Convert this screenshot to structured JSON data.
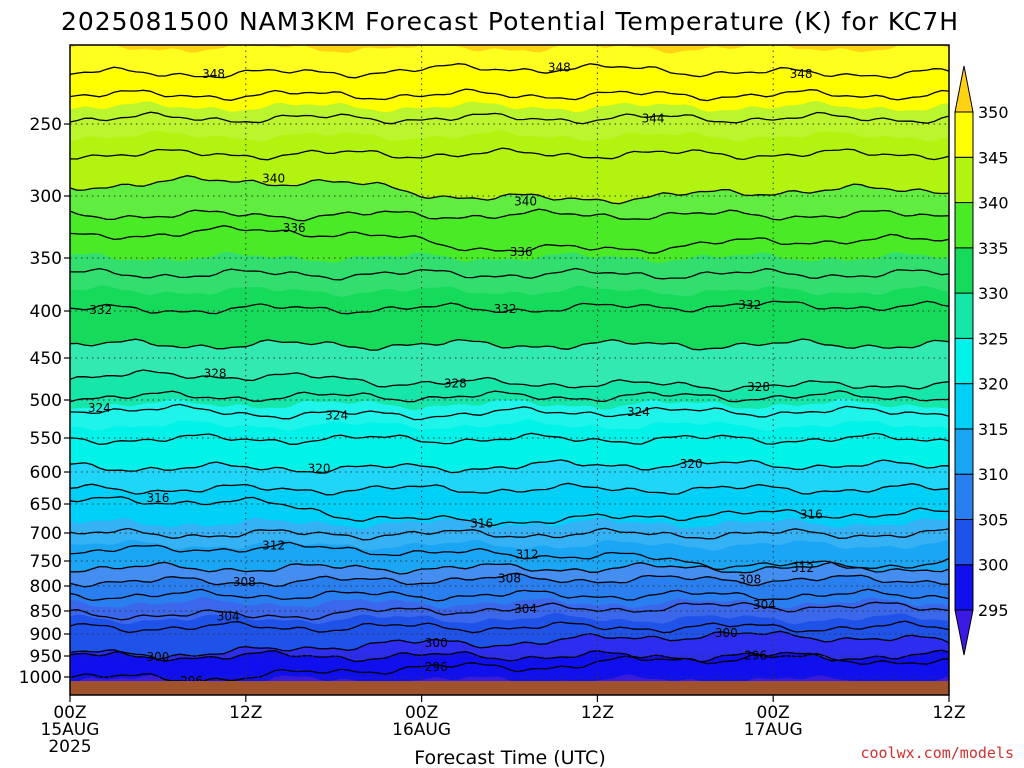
{
  "chart_data": {
    "type": "heatmap",
    "title": "2025081500 NAM3KM Forecast Potential Temperature (K) for KC7H",
    "xlabel": "Forecast Time (UTC)",
    "ylabel": "",
    "credit": "coolwx.com/models",
    "x_ticks": [
      {
        "hour": 0,
        "l1": "00Z",
        "l2": "15AUG",
        "l3": "2025"
      },
      {
        "hour": 12,
        "l1": "12Z",
        "l2": "",
        "l3": ""
      },
      {
        "hour": 24,
        "l1": "00Z",
        "l2": "16AUG",
        "l3": ""
      },
      {
        "hour": 36,
        "l1": "12Z",
        "l2": "",
        "l3": ""
      },
      {
        "hour": 48,
        "l1": "00Z",
        "l2": "17AUG",
        "l3": ""
      },
      {
        "hour": 60,
        "l1": "12Z",
        "l2": "",
        "l3": ""
      }
    ],
    "xlim_hours": [
      0,
      60
    ],
    "y_ticks": [
      250,
      300,
      350,
      400,
      450,
      500,
      550,
      600,
      650,
      700,
      750,
      800,
      850,
      900,
      950,
      1000
    ],
    "ylim_hPa": [
      200,
      1030
    ],
    "y_scale": "log-pressure",
    "contour_interval": 2,
    "contour_levels": [
      296,
      298,
      300,
      302,
      304,
      306,
      308,
      310,
      312,
      314,
      316,
      318,
      320,
      322,
      324,
      326,
      328,
      330,
      332,
      334,
      336,
      338,
      340,
      342,
      344,
      346,
      348
    ],
    "contour_labels": [
      {
        "value": "348",
        "hour": 9.8,
        "p": 217
      },
      {
        "value": "348",
        "hour": 33.4,
        "p": 213
      },
      {
        "value": "348",
        "hour": 49.9,
        "p": 217
      },
      {
        "value": "344",
        "hour": 39.8,
        "p": 246
      },
      {
        "value": "340",
        "hour": 13.9,
        "p": 287
      },
      {
        "value": "340",
        "hour": 31.1,
        "p": 304
      },
      {
        "value": "336",
        "hour": 15.3,
        "p": 325
      },
      {
        "value": "336",
        "hour": 30.8,
        "p": 345
      },
      {
        "value": "332",
        "hour": 2.1,
        "p": 399
      },
      {
        "value": "332",
        "hour": 29.7,
        "p": 398
      },
      {
        "value": "332",
        "hour": 46.4,
        "p": 394
      },
      {
        "value": "328",
        "hour": 9.9,
        "p": 468
      },
      {
        "value": "328",
        "hour": 26.3,
        "p": 480
      },
      {
        "value": "328",
        "hour": 47.0,
        "p": 484
      },
      {
        "value": "324",
        "hour": 2.0,
        "p": 510
      },
      {
        "value": "324",
        "hour": 18.2,
        "p": 520
      },
      {
        "value": "324",
        "hour": 38.8,
        "p": 515
      },
      {
        "value": "320",
        "hour": 17.0,
        "p": 595
      },
      {
        "value": "320",
        "hour": 42.4,
        "p": 588
      },
      {
        "value": "316",
        "hour": 6.0,
        "p": 640
      },
      {
        "value": "316",
        "hour": 28.1,
        "p": 683
      },
      {
        "value": "316",
        "hour": 50.6,
        "p": 668
      },
      {
        "value": "312",
        "hour": 13.9,
        "p": 722
      },
      {
        "value": "312",
        "hour": 31.2,
        "p": 738
      },
      {
        "value": "312",
        "hour": 50.0,
        "p": 764
      },
      {
        "value": "308",
        "hour": 11.9,
        "p": 792
      },
      {
        "value": "308",
        "hour": 30.0,
        "p": 785
      },
      {
        "value": "308",
        "hour": 46.4,
        "p": 787
      },
      {
        "value": "304",
        "hour": 10.8,
        "p": 862
      },
      {
        "value": "304",
        "hour": 31.1,
        "p": 846
      },
      {
        "value": "304",
        "hour": 47.4,
        "p": 838
      },
      {
        "value": "300",
        "hour": 6.0,
        "p": 952
      },
      {
        "value": "300",
        "hour": 25.0,
        "p": 920
      },
      {
        "value": "300",
        "hour": 44.8,
        "p": 898
      },
      {
        "value": "296",
        "hour": 8.3,
        "p": 1007
      },
      {
        "value": "296",
        "hour": 25.0,
        "p": 976
      },
      {
        "value": "296",
        "hour": 46.8,
        "p": 949
      }
    ],
    "colorbar": {
      "ticks": [
        295,
        300,
        305,
        310,
        315,
        320,
        325,
        330,
        335,
        340,
        345,
        350
      ],
      "colors": [
        {
          "range": "<295",
          "color": "#3b1ae6"
        },
        {
          "range": "295-300",
          "color": "#1010ee"
        },
        {
          "range": "300-305",
          "color": "#1f52e8"
        },
        {
          "range": "305-310",
          "color": "#2a7ff0"
        },
        {
          "range": "310-315",
          "color": "#1aa6f5"
        },
        {
          "range": "315-320",
          "color": "#00d0f8"
        },
        {
          "range": "320-325",
          "color": "#00f2e8"
        },
        {
          "range": "325-330",
          "color": "#16e6a8"
        },
        {
          "range": "330-335",
          "color": "#16db5a"
        },
        {
          "range": "335-340",
          "color": "#4bea26"
        },
        {
          "range": "340-345",
          "color": "#b2f410"
        },
        {
          "range": "345-350",
          "color": "#ffff00"
        },
        {
          "range": ">350",
          "color": "#ffd214"
        }
      ]
    },
    "ground_color": "#a0522d",
    "grid": "dotted"
  }
}
